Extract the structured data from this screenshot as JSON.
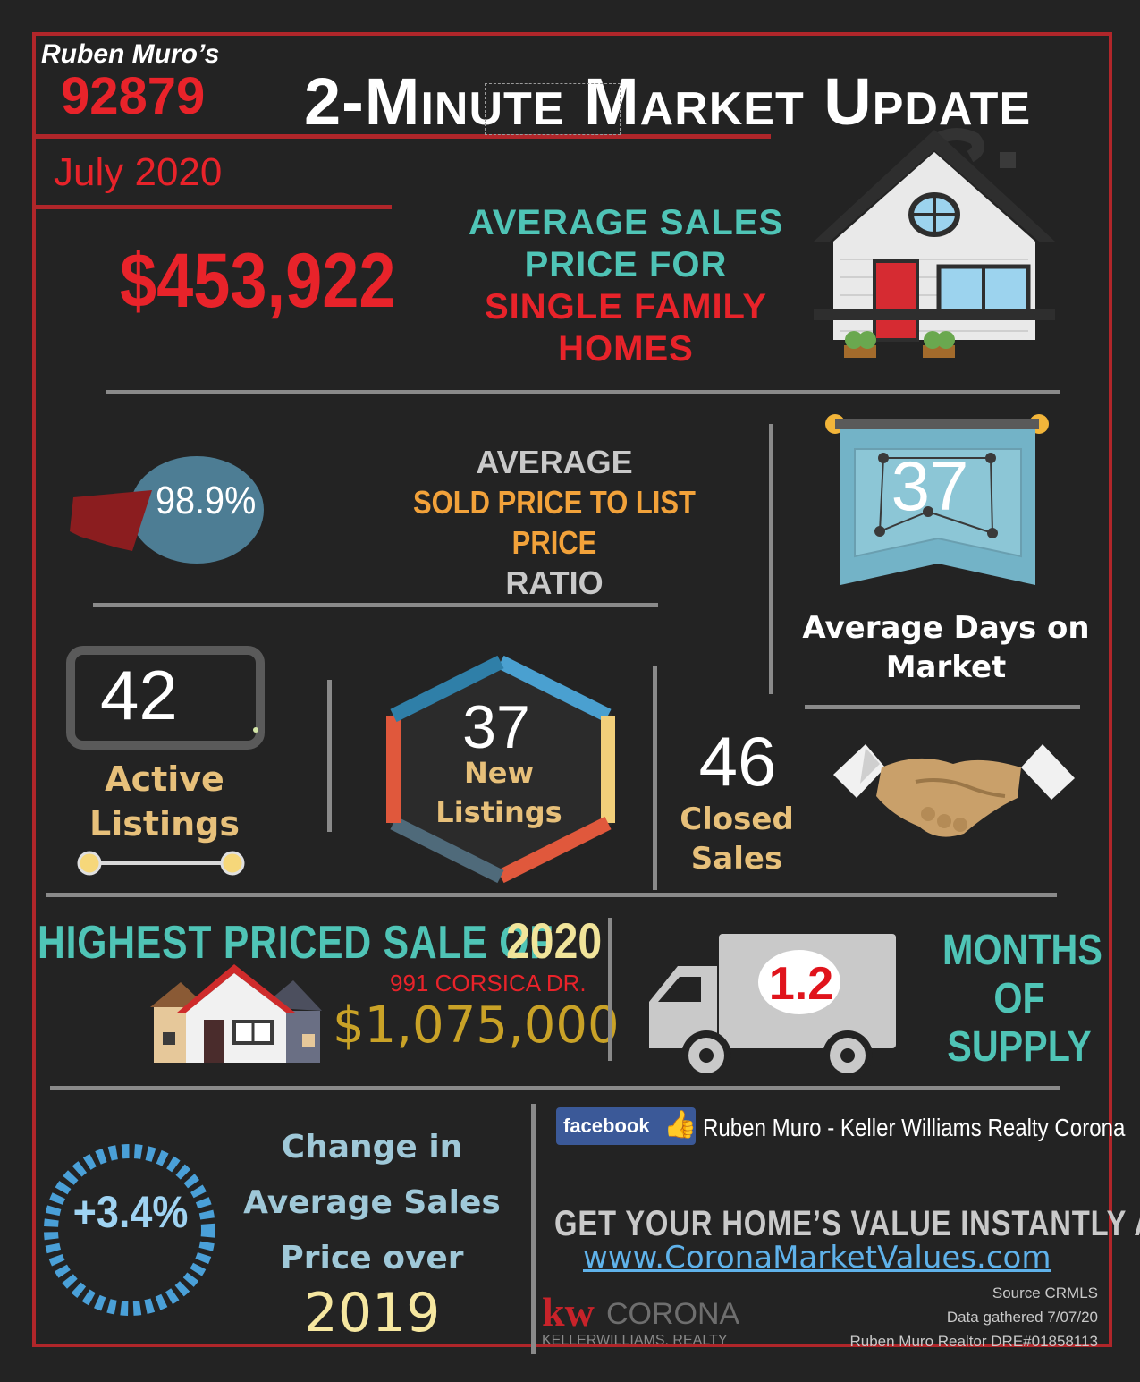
{
  "header": {
    "agent": "Ruben Muro’s",
    "zip": "92879",
    "period": "July 2020",
    "title": "2-Minute Market Update"
  },
  "avg_price": {
    "value": "$453,922",
    "label_1": "AVERAGE SALES",
    "label_2": "PRICE FOR",
    "label_3": "SINGLE FAMILY",
    "label_4": "HOMES"
  },
  "ratio": {
    "value": "98.9%",
    "fraction": 0.989,
    "label_1": "AVERAGE",
    "label_2": "SOLD PRICE TO LIST PRICE",
    "label_3": "RATIO"
  },
  "days_on_market": {
    "value": "37",
    "label_1": "Average Days on",
    "label_2": "Market"
  },
  "active_listings": {
    "value": "42",
    "label_1": "Active",
    "label_2": "Listings"
  },
  "new_listings": {
    "value": "37",
    "label_1": "New",
    "label_2": "Listings"
  },
  "closed_sales": {
    "value": "46",
    "label_1": "Closed",
    "label_2": "Sales"
  },
  "highest_sale": {
    "label": "HIGHEST PRICED SALE OF",
    "year": "2020",
    "address": "991 CORSICA DR.",
    "price": "$1,075,000"
  },
  "supply": {
    "value": "1.2",
    "label_1": "MONTHS",
    "label_2": "OF",
    "label_3": "SUPPLY"
  },
  "change": {
    "value": "+3.4%",
    "label_1": "Change in",
    "label_2": "Average Sales",
    "label_3": "Price over",
    "year": "2019"
  },
  "footer": {
    "facebook": "facebook",
    "facebook_name": "Ruben Muro - Keller Williams Realty Corona",
    "cta": "GET YOUR HOME’S  VALUE INSTANTLY AT:",
    "url": "www.CoronaMarketValues.com",
    "logo_kw": "kw",
    "logo_city": "CORONA",
    "logo_sub": "KELLERWILLIAMS. REALTY",
    "source": "Source CRMLS",
    "gathered": "Data gathered 7/07/20",
    "license": "Ruben Muro Realtor DRE#01858113"
  },
  "colors": {
    "background": "#232323",
    "frame": "#b0262a",
    "accent_red": "#e8232a",
    "teal": "#4fc4b6",
    "gold": "#c9a227"
  }
}
